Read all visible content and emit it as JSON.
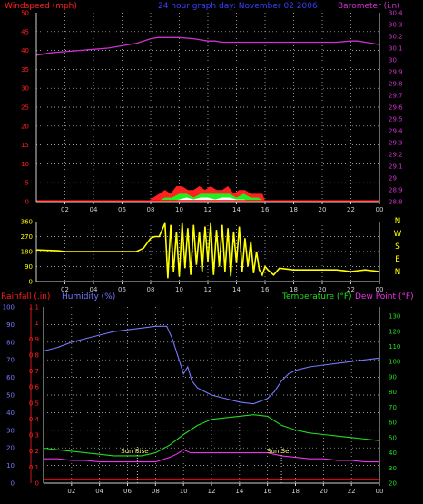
{
  "header": {
    "windspeed_label": "Windspeed (mph)",
    "title": "24 hour graph day: November 02 2006",
    "barometer_label": "Barometer (i.n)"
  },
  "lower_header": {
    "rainfall_label": "Rainfall (.in)",
    "humidity_label": "Humidity (%)",
    "temperature_label": "Temperature (°F)",
    "dewpoint_label": "Dew Point (°F)"
  },
  "annotations": {
    "sunrise": "Sun Rise",
    "sunset": "Sun Set"
  },
  "colors": {
    "background": "#000000",
    "grid": "#cfcfcf",
    "wind_speed": "#ff2020",
    "wind_gust": "#22ee22",
    "wind_avg": "#ffffff",
    "barometer": "#cc33cc",
    "direction": "#ffff00",
    "humidity": "#7777ff",
    "temperature": "#22dd22",
    "dew_point": "#ee33ee",
    "rainfall": "#ff0000"
  },
  "chart_data": [
    {
      "type": "line",
      "name": "wind-barometer",
      "x_ticks": [
        "02",
        "04",
        "06",
        "08",
        "10",
        "12",
        "14",
        "16",
        "18",
        "20",
        "22",
        "00"
      ],
      "xlim": [
        0,
        24
      ],
      "y_left_ticks": [
        "0",
        "5",
        "10",
        "15",
        "20",
        "25",
        "30",
        "35",
        "40",
        "45",
        "50"
      ],
      "ylim_left": [
        0,
        50
      ],
      "y_right_ticks": [
        "28.8",
        "28.9",
        "29",
        "29.1",
        "29.2",
        "29.3",
        "29.4",
        "29.5",
        "29.6",
        "29.7",
        "29.8",
        "29.9",
        "30",
        "30.1",
        "30.2",
        "30.3",
        "30.4"
      ],
      "ylim_right": [
        28.8,
        30.4
      ],
      "barometer": {
        "x": [
          0,
          1,
          2,
          3,
          4,
          5,
          6,
          7,
          7.5,
          8,
          8.5,
          9,
          10,
          11,
          11.5,
          12,
          12.5,
          13,
          14,
          15,
          16,
          17,
          18,
          19,
          20,
          21,
          22,
          22.5,
          23,
          24
        ],
        "y": [
          30.04,
          30.06,
          30.07,
          30.08,
          30.09,
          30.1,
          30.12,
          30.14,
          30.16,
          30.18,
          30.19,
          30.19,
          30.19,
          30.18,
          30.17,
          30.16,
          30.16,
          30.15,
          30.15,
          30.15,
          30.15,
          30.15,
          30.15,
          30.15,
          30.15,
          30.15,
          30.16,
          30.16,
          30.15,
          30.13
        ]
      },
      "wind_speed_peak": {
        "x": [
          7.8,
          8.2,
          8.6,
          9,
          9.4,
          9.8,
          10.2,
          10.6,
          11,
          11.4,
          11.8,
          12.2,
          12.6,
          13,
          13.4,
          13.8,
          14.2,
          14.6,
          15,
          15.4,
          15.8,
          16
        ],
        "y": [
          0,
          1,
          2,
          3,
          2,
          4,
          4,
          3,
          3,
          4,
          3,
          4,
          3,
          3,
          4,
          2,
          3,
          3,
          2,
          2,
          2,
          0
        ]
      },
      "wind_speed_mid": {
        "x": [
          8.5,
          9,
          9.5,
          10,
          10.5,
          11,
          11.5,
          12,
          12.5,
          13,
          13.5,
          14,
          14.5,
          15,
          15.5,
          16
        ],
        "y": [
          0,
          1,
          1,
          2,
          2,
          1,
          2,
          2,
          2,
          2,
          2,
          1,
          2,
          1,
          1,
          0
        ]
      },
      "wind_avg": {
        "x": [
          9.5,
          10,
          10.5,
          11,
          11.5,
          12,
          12.5,
          13,
          13.5,
          14,
          14.5,
          15
        ],
        "y": [
          0,
          0.5,
          1,
          0.5,
          1,
          1,
          0.5,
          1,
          1,
          0.5,
          0.5,
          0
        ]
      }
    },
    {
      "type": "line",
      "name": "wind-direction",
      "x_ticks": [
        "02",
        "04",
        "06",
        "08",
        "10",
        "12",
        "14",
        "16",
        "18",
        "20",
        "22",
        "00"
      ],
      "xlim": [
        0,
        24
      ],
      "y_ticks": [
        "0",
        "90",
        "180",
        "270",
        "360"
      ],
      "ylim": [
        0,
        360
      ],
      "compass_labels": [
        "N",
        "W",
        "S",
        "E",
        "N"
      ],
      "direction": {
        "x": [
          0,
          1.5,
          2,
          4,
          6,
          7,
          7.5,
          8,
          8.3,
          8.6,
          9,
          9.2,
          9.4,
          9.6,
          9.8,
          10,
          10.2,
          10.4,
          10.6,
          10.8,
          11,
          11.2,
          11.4,
          11.6,
          11.8,
          12,
          12.2,
          12.4,
          12.6,
          12.8,
          13,
          13.2,
          13.4,
          13.6,
          13.8,
          14,
          14.2,
          14.4,
          14.6,
          14.8,
          15,
          15.2,
          15.4,
          15.6,
          15.8,
          16,
          16.2,
          16.6,
          17,
          18,
          19,
          20,
          21,
          22,
          23,
          24
        ],
        "y": [
          190,
          185,
          180,
          180,
          180,
          180,
          200,
          260,
          270,
          270,
          350,
          20,
          340,
          60,
          300,
          30,
          350,
          80,
          320,
          40,
          340,
          100,
          300,
          60,
          330,
          120,
          350,
          40,
          310,
          90,
          340,
          60,
          320,
          30,
          300,
          110,
          330,
          60,
          260,
          90,
          240,
          50,
          180,
          70,
          40,
          90,
          70,
          40,
          80,
          70,
          70,
          70,
          70,
          60,
          70,
          60
        ]
      }
    },
    {
      "type": "line",
      "name": "humidity-temperature",
      "x_ticks": [
        "02",
        "04",
        "06",
        "08",
        "10",
        "12",
        "14",
        "16",
        "18",
        "20",
        "22",
        "00"
      ],
      "xlim": [
        0,
        24
      ],
      "y_left_ticks": [
        "0",
        "10",
        "20",
        "30",
        "40",
        "50",
        "60",
        "70",
        "80",
        "90",
        "100"
      ],
      "ylim_left": [
        0,
        100
      ],
      "y_inner_ticks": [
        "0",
        "0.1",
        "0.2",
        "0.3",
        "0.4",
        "0.5",
        "0.6",
        "0.7",
        "0.8",
        "0.9",
        "1",
        "1.1"
      ],
      "ylim_inner": [
        0,
        1.1
      ],
      "y_right_ticks": [
        "20",
        "30",
        "40",
        "50",
        "60",
        "70",
        "80",
        "90",
        "100",
        "110",
        "120",
        "130"
      ],
      "ylim_right": [
        20,
        136
      ],
      "humidity": {
        "name": "Humidity (%)",
        "x": [
          0,
          1,
          2,
          3,
          4,
          5,
          6,
          7,
          8,
          8.8,
          9.2,
          9.6,
          10,
          10.3,
          10.6,
          11,
          11.5,
          12,
          13,
          14,
          15,
          16,
          16.5,
          17,
          17.5,
          18,
          19,
          20,
          21,
          22,
          23,
          24
        ],
        "y": [
          75,
          77,
          80,
          82,
          84,
          86,
          87,
          88,
          89,
          89,
          82,
          72,
          62,
          66,
          58,
          54,
          52,
          50,
          48,
          46,
          45,
          48,
          52,
          58,
          62,
          64,
          66,
          67,
          68,
          69,
          70,
          71
        ]
      },
      "temperature": {
        "name": "Temperature (°F)",
        "x": [
          0,
          1,
          2,
          3,
          4,
          5,
          6,
          7,
          8,
          9,
          10,
          11,
          12,
          13,
          14,
          15,
          16,
          17,
          18,
          19,
          20,
          21,
          22,
          23,
          24
        ],
        "y": [
          43,
          42,
          41,
          40,
          39,
          38,
          38,
          38,
          40,
          45,
          52,
          58,
          62,
          63,
          64,
          65,
          64,
          58,
          55,
          53,
          52,
          51,
          50,
          49,
          48
        ]
      },
      "dew_point": {
        "name": "Dew Point (°F)",
        "x": [
          0,
          1,
          2,
          3,
          4,
          5,
          6,
          7,
          8,
          9,
          9.5,
          10,
          10.5,
          11,
          12,
          13,
          14,
          15,
          16,
          17,
          18,
          19,
          20,
          21,
          22,
          23,
          24
        ],
        "y": [
          36,
          36,
          35,
          35,
          34,
          34,
          34,
          34,
          34,
          37,
          39,
          42,
          40,
          40,
          40,
          40,
          40,
          40,
          40,
          38,
          37,
          36,
          36,
          35,
          35,
          34,
          34
        ]
      },
      "rainfall": {
        "name": "Rainfall (.in)",
        "x": [
          0,
          24
        ],
        "y": [
          0,
          0
        ]
      },
      "sunrise_hour": 6.7,
      "sunset_hour": 17.0
    }
  ]
}
